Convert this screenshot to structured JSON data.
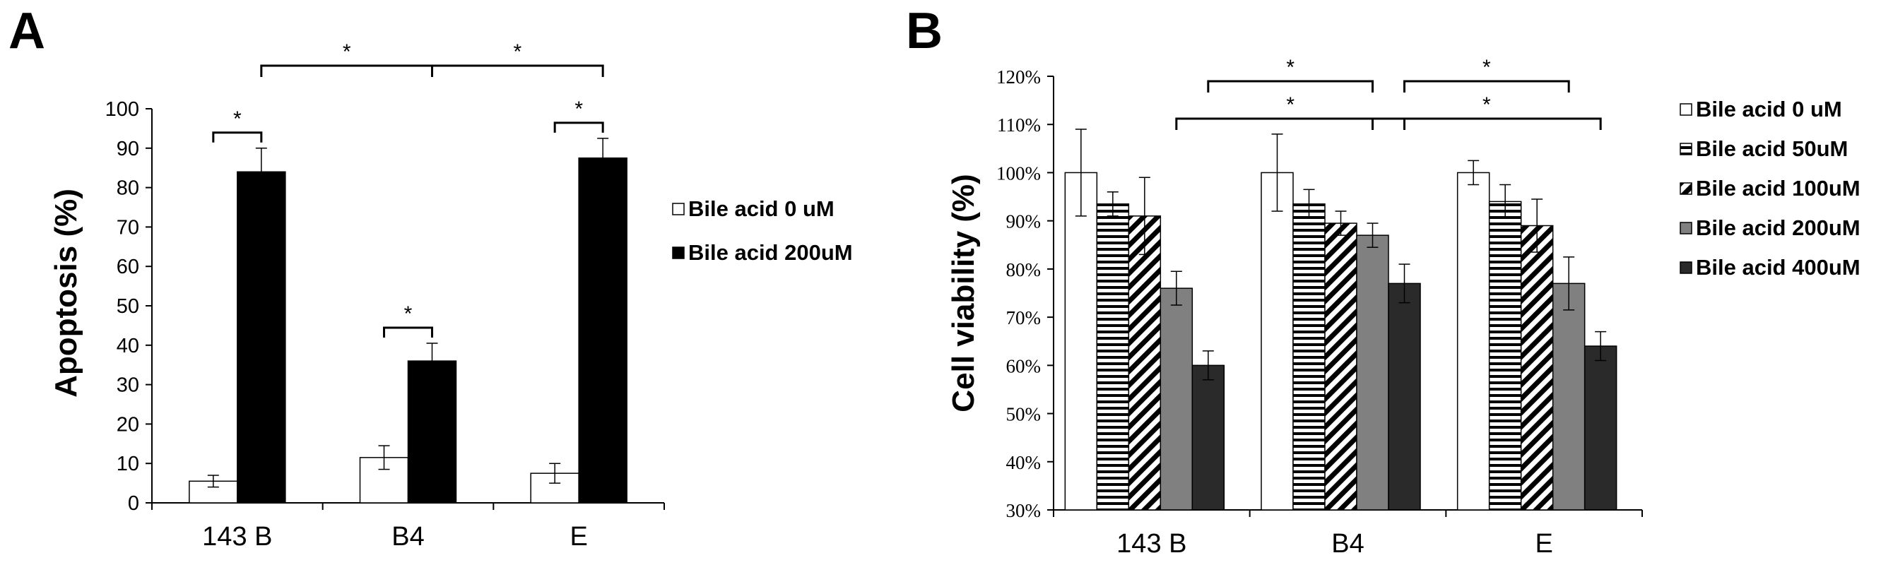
{
  "colors": {
    "ink": "#000000",
    "black_fill": "#000000",
    "dark_fill": "#2a2a2a",
    "grey_fill": "#808080",
    "white_fill": "#ffffff"
  },
  "chart_data": [
    {
      "panel": "A",
      "type": "bar",
      "ylabel": "Apoptosis (%)",
      "xlabel": "",
      "ylim": [
        0,
        100
      ],
      "yticks": [
        "0",
        "10",
        "20",
        "30",
        "40",
        "50",
        "60",
        "70",
        "80",
        "90",
        "100"
      ],
      "categories": [
        "143 B",
        "B4",
        "E"
      ],
      "series": [
        {
          "name": "Bile acid 0 uM",
          "fill": "white",
          "values": [
            5.5,
            11.5,
            7.5
          ],
          "errors": [
            1.5,
            3.0,
            2.5
          ]
        },
        {
          "name": "Bile acid 200uM",
          "fill": "black",
          "values": [
            84,
            36,
            87.5
          ],
          "errors": [
            6.0,
            4.5,
            5.0
          ]
        }
      ],
      "significance": [
        {
          "label": "*",
          "from": [
            0,
            0
          ],
          "to": [
            0,
            1
          ]
        },
        {
          "label": "*",
          "from": [
            1,
            0
          ],
          "to": [
            1,
            1
          ]
        },
        {
          "label": "*",
          "from": [
            2,
            0
          ],
          "to": [
            2,
            1
          ]
        },
        {
          "label": "*",
          "from": [
            0,
            1
          ],
          "to": [
            1,
            1
          ]
        },
        {
          "label": "*",
          "from": [
            1,
            1
          ],
          "to": [
            2,
            1
          ]
        }
      ],
      "legend_position": "right",
      "grid": false
    },
    {
      "panel": "B",
      "type": "bar",
      "ylabel": "Cell viability (%)",
      "xlabel": "",
      "ylim": [
        30,
        120
      ],
      "yticks": [
        "30%",
        "40%",
        "50%",
        "60%",
        "70%",
        "80%",
        "90%",
        "100%",
        "110%",
        "120%"
      ],
      "categories": [
        "143 B",
        "B4",
        "E"
      ],
      "series": [
        {
          "name": "Bile acid 0 uM",
          "pattern": "white",
          "values": [
            100,
            100,
            100
          ],
          "errors": [
            9.0,
            8.0,
            2.5
          ]
        },
        {
          "name": "Bile acid 50uM",
          "pattern": "horizontal-lines",
          "values": [
            93.5,
            93.5,
            94
          ],
          "errors": [
            2.5,
            3.0,
            3.5
          ]
        },
        {
          "name": "Bile acid 100uM",
          "pattern": "diagonal-lines",
          "values": [
            91,
            89.5,
            89
          ],
          "errors": [
            8.0,
            2.5,
            5.5
          ]
        },
        {
          "name": "Bile acid 200uM",
          "pattern": "grey",
          "values": [
            76,
            87,
            77
          ],
          "errors": [
            3.5,
            2.5,
            5.5
          ]
        },
        {
          "name": "Bile acid 400uM",
          "pattern": "dark",
          "values": [
            60,
            77,
            64
          ],
          "errors": [
            3.0,
            4.0,
            3.0
          ]
        }
      ],
      "significance": [
        {
          "label": "*",
          "from": [
            0,
            4
          ],
          "to": [
            1,
            3
          ]
        },
        {
          "label": "*",
          "from": [
            1,
            4
          ],
          "to": [
            2,
            3
          ]
        },
        {
          "label": "*",
          "from": [
            0,
            3
          ],
          "to": [
            1,
            4
          ]
        },
        {
          "label": "*",
          "from": [
            1,
            3
          ],
          "to": [
            2,
            4
          ]
        }
      ],
      "legend_position": "right",
      "grid": false
    }
  ]
}
